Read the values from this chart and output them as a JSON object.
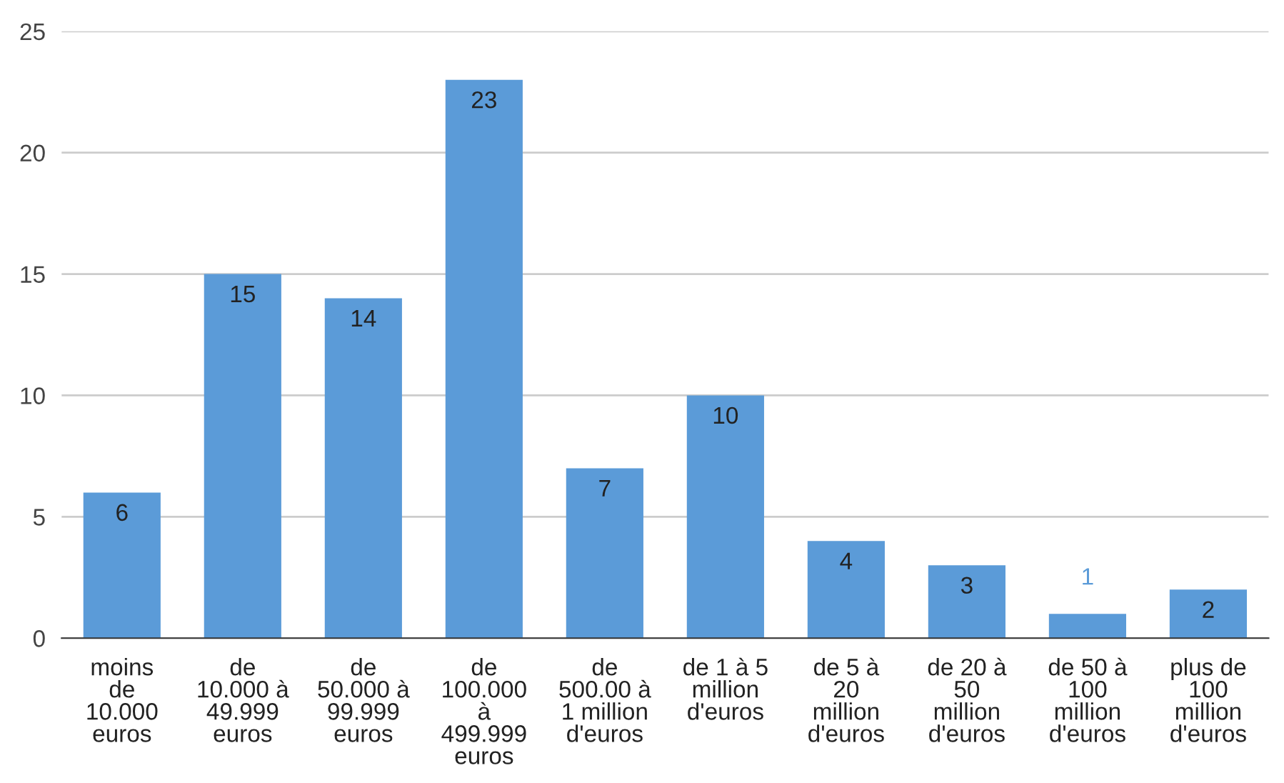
{
  "chart_data": {
    "type": "bar",
    "categories": [
      "moins\nde\n10.000\neuros",
      "de\n10.000 à\n49.999\neuros",
      "de\n50.000 à\n99.999\neuros",
      "de\n100.000\nà\n499.999\neuros",
      "de\n500.00 à\n1 million\nd'euros",
      "de 1 à 5\nmillion\nd'euros",
      "de 5 à\n20\nmillion\nd'euros",
      "de 20 à\n50\nmillion\nd'euros",
      "de 50 à\n100\nmillion\nd'euros",
      "plus de\n100\nmillion\nd'euros"
    ],
    "values": [
      6,
      15,
      14,
      23,
      7,
      10,
      4,
      3,
      1,
      2
    ],
    "color": "#5b9bd8",
    "ylim": [
      0,
      25
    ],
    "yticks": [
      0,
      5,
      10,
      15,
      20,
      25
    ],
    "grid": "y",
    "data_labels": true
  }
}
